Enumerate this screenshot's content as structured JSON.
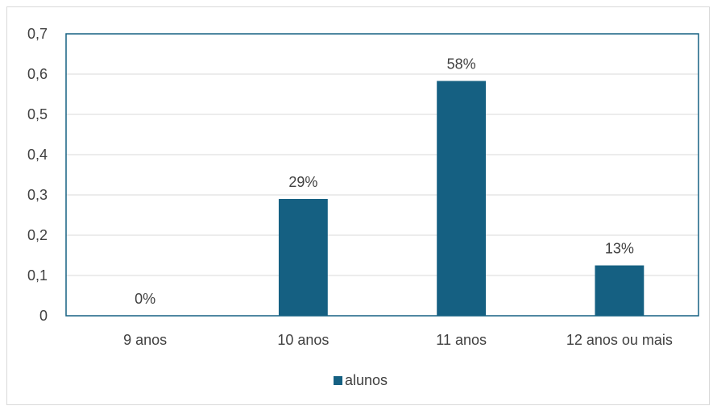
{
  "chart_data": {
    "type": "bar",
    "categories": [
      "9 anos",
      "10 anos",
      "11 anos",
      "12 anos ou mais"
    ],
    "series": [
      {
        "name": "alunos",
        "values": [
          0,
          0.29,
          0.583,
          0.125
        ],
        "data_labels": [
          "0%",
          "29%",
          "58%",
          "13%"
        ],
        "color": "#156082"
      }
    ],
    "ylim": [
      0,
      0.7
    ],
    "yticks": [
      0,
      0.1,
      0.2,
      0.3,
      0.4,
      0.5,
      0.6,
      0.7
    ],
    "ytick_labels": [
      "0",
      "0,1",
      "0,2",
      "0,3",
      "0,4",
      "0,5",
      "0,6",
      "0,7"
    ],
    "grid": true,
    "legend_position": "bottom",
    "gridline_color": "#d9d9d9",
    "plot_border_color": "#156082"
  }
}
